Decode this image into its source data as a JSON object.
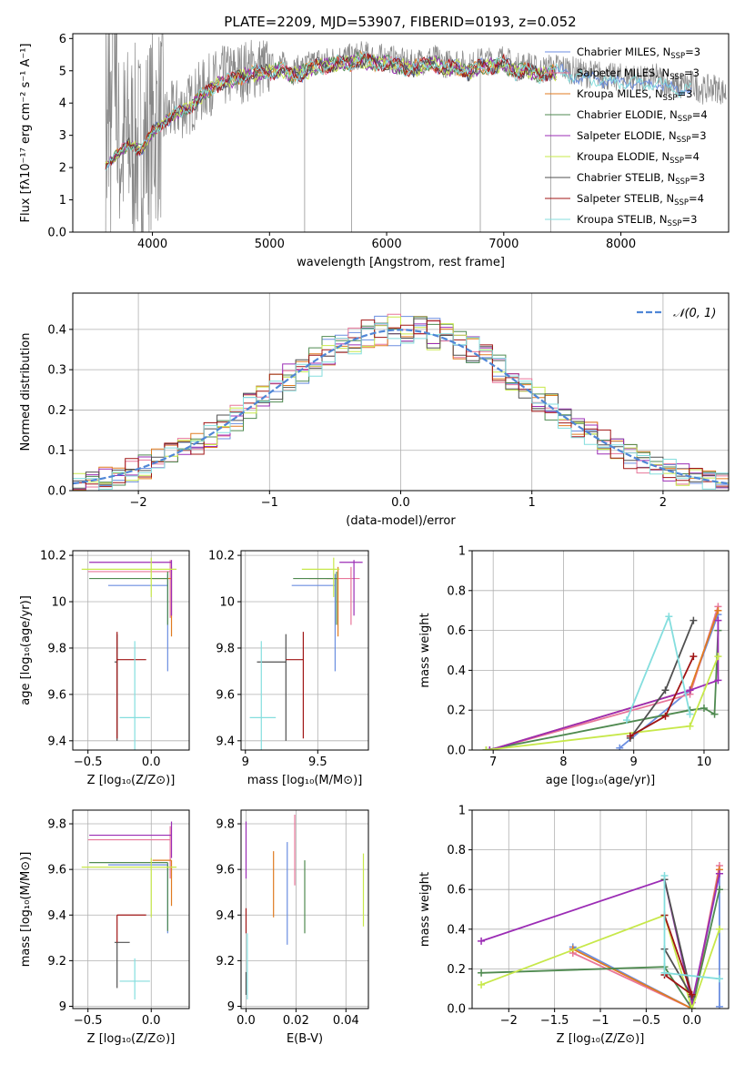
{
  "title": "PLATE=2209, MJD=53907, FIBERID=0193, z=0.052",
  "colors": {
    "Chabrier MILES": "#6b8ee0",
    "Salpeter MILES": "#e8769a",
    "Kroupa MILES": "#e07b20",
    "Chabrier ELODIE": "#4f8a50",
    "Salpeter ELODIE": "#9b2cb5",
    "Kroupa ELODIE": "#c7e84a",
    "Chabrier STELIB": "#505050",
    "Salpeter STELIB": "#a01515",
    "Kroupa STELIB": "#84dede",
    "data": "#888888",
    "normal": "#4f86d6"
  },
  "chart_data": [
    {
      "id": "spectrum",
      "type": "line",
      "xlabel": "wavelength [Angstrom, rest frame]",
      "ylabel": "Flux [fλ10⁻¹⁷ erg cm⁻² s⁻¹ A⁻¹]",
      "xlim": [
        3320,
        8920
      ],
      "ylim": [
        0,
        6.15
      ],
      "xticks": [
        4000,
        5000,
        6000,
        7000,
        8000
      ],
      "yticks": [
        0,
        1,
        2,
        3,
        4,
        5,
        6
      ],
      "legend_loc": "upper right",
      "legend": [
        {
          "label": "Chabrier MILES, N",
          "sub": "SSP",
          "tail": "=3",
          "model": "Chabrier MILES"
        },
        {
          "label": "Salpeter MILES, N",
          "sub": "SSP",
          "tail": "=3",
          "model": "Salpeter MILES"
        },
        {
          "label": "Kroupa MILES, N",
          "sub": "SSP",
          "tail": "=3",
          "model": "Kroupa MILES"
        },
        {
          "label": "Chabrier ELODIE, N",
          "sub": "SSP",
          "tail": "=4",
          "model": "Chabrier ELODIE"
        },
        {
          "label": "Salpeter ELODIE, N",
          "sub": "SSP",
          "tail": "=3",
          "model": "Salpeter ELODIE"
        },
        {
          "label": "Kroupa ELODIE, N",
          "sub": "SSP",
          "tail": "=4",
          "model": "Kroupa ELODIE"
        },
        {
          "label": "Chabrier STELIB, N",
          "sub": "SSP",
          "tail": "=3",
          "model": "Chabrier STELIB"
        },
        {
          "label": "Salpeter STELIB, N",
          "sub": "SSP",
          "tail": "=4",
          "model": "Salpeter STELIB"
        },
        {
          "label": "Kroupa STELIB, N",
          "sub": "SSP",
          "tail": "=3",
          "model": "Kroupa STELIB"
        }
      ],
      "continuum": {
        "x": [
          3600,
          3700,
          3800,
          3900,
          4000,
          4100,
          4200,
          4300,
          4400,
          4500,
          4600,
          4700,
          4800,
          4900,
          5000,
          5100,
          5200,
          5300,
          5400,
          5500,
          5600,
          5700,
          5800,
          5900,
          6000,
          6100,
          6200,
          6300,
          6400,
          6500,
          6600,
          6700,
          6800,
          6900,
          7000,
          7100,
          7200,
          7300,
          7400,
          7500,
          7600,
          7700,
          7800,
          7900,
          8000,
          8100,
          8200,
          8300,
          8400,
          8500,
          8600,
          8700,
          8800,
          8900
        ],
        "y": [
          2.1,
          2.5,
          2.8,
          2.6,
          3.2,
          3.5,
          3.8,
          3.9,
          4.3,
          4.6,
          4.8,
          4.9,
          5.0,
          5.1,
          5.1,
          5.2,
          5.0,
          5.1,
          5.3,
          5.3,
          5.4,
          5.4,
          5.5,
          5.4,
          5.4,
          5.3,
          5.2,
          5.3,
          5.4,
          5.2,
          5.3,
          5.1,
          5.3,
          5.3,
          5.4,
          5.1,
          5.2,
          5.0,
          5.1,
          5.1,
          5.0,
          4.9,
          4.9,
          4.8,
          4.8,
          4.8,
          4.7,
          4.8,
          4.6,
          4.5,
          4.6,
          4.4,
          4.5,
          4.3
        ]
      }
    },
    {
      "id": "residuals",
      "type": "histogram",
      "xlabel": "(data-model)/error",
      "ylabel": "Normed distribution",
      "xlim": [
        -2.5,
        2.5
      ],
      "ylim": [
        0,
        0.49
      ],
      "xticks": [
        -2,
        -1,
        0,
        1,
        2
      ],
      "yticks": [
        0.0,
        0.1,
        0.2,
        0.3,
        0.4
      ],
      "legend_label": "𝒩(0, 1)",
      "legend_loc": "upper right",
      "grid": true
    },
    {
      "id": "age-vs-Z",
      "type": "scatter",
      "xlabel": "Z [log₁₀(Z/Z⊙)]",
      "ylabel": "age  [log₁₀(age/yr)]",
      "xlim": [
        -0.62,
        0.3
      ],
      "ylim": [
        9.36,
        10.22
      ],
      "xticks": [
        -0.5,
        0.0
      ],
      "yticks": [
        9.4,
        9.6,
        9.8,
        10.0,
        10.2
      ],
      "grid": true,
      "points": [
        {
          "model": "Chabrier MILES",
          "x": 0.13,
          "y": 10.07,
          "xerr": [
            0.47,
            0.0
          ],
          "yerr": [
            0.37,
            0.05
          ]
        },
        {
          "model": "Salpeter MILES",
          "x": 0.15,
          "y": 10.13,
          "xerr": [
            0.65,
            0.0
          ],
          "yerr": [
            0.2,
            0.05
          ]
        },
        {
          "model": "Kroupa MILES",
          "x": 0.16,
          "y": 10.1,
          "xerr": [
            0.15,
            0.0
          ],
          "yerr": [
            0.25,
            0.05
          ]
        },
        {
          "model": "Chabrier ELODIE",
          "x": 0.13,
          "y": 10.1,
          "xerr": [
            0.62,
            0.0
          ],
          "yerr": [
            0.2,
            0.03
          ]
        },
        {
          "model": "Salpeter ELODIE",
          "x": 0.16,
          "y": 10.17,
          "xerr": [
            0.65,
            0.0
          ],
          "yerr": [
            0.23,
            0.01
          ]
        },
        {
          "model": "Kroupa ELODIE",
          "x": 0.0,
          "y": 10.14,
          "xerr": [
            0.55,
            0.2
          ],
          "yerr": [
            0.12,
            0.05
          ]
        },
        {
          "model": "Chabrier STELIB",
          "x": -0.27,
          "y": 9.74,
          "xerr": [
            0.02,
            0.0
          ],
          "yerr": [
            0.34,
            0.12
          ]
        },
        {
          "model": "Salpeter STELIB",
          "x": -0.27,
          "y": 9.75,
          "xerr": [
            0.0,
            0.23
          ],
          "yerr": [
            0.34,
            0.12
          ]
        },
        {
          "model": "Kroupa STELIB",
          "x": -0.13,
          "y": 9.5,
          "xerr": [
            0.12,
            0.12
          ],
          "yerr": [
            0.17,
            0.33
          ]
        }
      ]
    },
    {
      "id": "age-vs-mass",
      "type": "scatter",
      "xlabel": "mass [log₁₀(M/M⊙)]",
      "ylabel": "",
      "xlim": [
        8.97,
        9.85
      ],
      "ylim": [
        9.36,
        10.22
      ],
      "xticks": [
        9.0,
        9.5
      ],
      "yticks": [
        9.4,
        9.6,
        9.8,
        10.0,
        10.2
      ],
      "grid": true,
      "points": [
        {
          "model": "Chabrier MILES",
          "x": 9.62,
          "y": 10.07,
          "xerr": [
            0.3,
            0.0
          ],
          "yerr": [
            0.37,
            0.05
          ]
        },
        {
          "model": "Salpeter MILES",
          "x": 9.73,
          "y": 10.1,
          "xerr": [
            0.17,
            0.06
          ],
          "yerr": [
            0.2,
            0.05
          ]
        },
        {
          "model": "Kroupa MILES",
          "x": 9.64,
          "y": 10.1,
          "xerr": [
            0.2,
            0.0
          ],
          "yerr": [
            0.25,
            0.05
          ]
        },
        {
          "model": "Chabrier ELODIE",
          "x": 9.63,
          "y": 10.1,
          "xerr": [
            0.3,
            0.0
          ],
          "yerr": [
            0.2,
            0.03
          ]
        },
        {
          "model": "Salpeter ELODIE",
          "x": 9.75,
          "y": 10.17,
          "xerr": [
            0.1,
            0.06
          ],
          "yerr": [
            0.23,
            0.01
          ]
        },
        {
          "model": "Kroupa ELODIE",
          "x": 9.61,
          "y": 10.14,
          "xerr": [
            0.22,
            0.04
          ],
          "yerr": [
            0.12,
            0.05
          ]
        },
        {
          "model": "Chabrier STELIB",
          "x": 9.28,
          "y": 9.74,
          "xerr": [
            0.2,
            0.0
          ],
          "yerr": [
            0.34,
            0.12
          ]
        },
        {
          "model": "Salpeter STELIB",
          "x": 9.4,
          "y": 9.75,
          "xerr": [
            0.12,
            0.0
          ],
          "yerr": [
            0.34,
            0.12
          ]
        },
        {
          "model": "Kroupa STELIB",
          "x": 9.11,
          "y": 9.5,
          "xerr": [
            0.08,
            0.1
          ],
          "yerr": [
            0.17,
            0.33
          ]
        }
      ]
    },
    {
      "id": "mass-weight-vs-age",
      "type": "line",
      "xlabel": "age  [log₁₀(age/yr)]",
      "ylabel": "mass weight",
      "xlim": [
        6.7,
        10.35
      ],
      "ylim": [
        0,
        1.0
      ],
      "xticks": [
        7,
        8,
        9,
        10
      ],
      "yticks": [
        0.0,
        0.2,
        0.4,
        0.6,
        0.8,
        1.0
      ],
      "grid": true,
      "series": [
        {
          "model": "Chabrier MILES",
          "x": [
            8.8,
            9.8,
            10.2
          ],
          "y": [
            0.01,
            0.3,
            0.68
          ]
        },
        {
          "model": "Salpeter MILES",
          "x": [
            6.95,
            9.8,
            10.2
          ],
          "y": [
            0.0,
            0.28,
            0.72
          ]
        },
        {
          "model": "Kroupa MILES",
          "x": [
            6.95,
            9.8,
            10.2
          ],
          "y": [
            0.0,
            0.3,
            0.7
          ]
        },
        {
          "model": "Chabrier ELODIE",
          "x": [
            6.9,
            9.8,
            10.0,
            10.15,
            10.2
          ],
          "y": [
            0.0,
            0.2,
            0.21,
            0.18,
            0.6
          ]
        },
        {
          "model": "Salpeter ELODIE",
          "x": [
            6.95,
            9.8,
            10.2,
            10.2
          ],
          "y": [
            0.0,
            0.3,
            0.35,
            0.65
          ]
        },
        {
          "model": "Kroupa ELODIE",
          "x": [
            6.9,
            9.8,
            10.2
          ],
          "y": [
            0.0,
            0.12,
            0.47
          ]
        },
        {
          "model": "Chabrier STELIB",
          "x": [
            8.95,
            9.45,
            9.85
          ],
          "y": [
            0.06,
            0.3,
            0.65
          ]
        },
        {
          "model": "Salpeter STELIB",
          "x": [
            8.95,
            9.45,
            9.85
          ],
          "y": [
            0.07,
            0.17,
            0.47
          ]
        },
        {
          "model": "Kroupa STELIB",
          "x": [
            8.9,
            9.5,
            9.8
          ],
          "y": [
            0.15,
            0.67,
            0.18
          ]
        }
      ]
    },
    {
      "id": "mass-vs-Z",
      "type": "scatter",
      "xlabel": "Z [log₁₀(Z/Z⊙)]",
      "ylabel": "mass [log₁₀(M/M⊙)]",
      "xlim": [
        -0.62,
        0.3
      ],
      "ylim": [
        8.99,
        9.86
      ],
      "xticks": [
        -0.5,
        0.0
      ],
      "yticks": [
        9.0,
        9.2,
        9.4,
        9.6,
        9.8
      ],
      "grid": true,
      "points": [
        {
          "model": "Chabrier MILES",
          "x": 0.13,
          "y": 9.62,
          "xerr": [
            0.47,
            0.0
          ],
          "yerr": [
            0.3,
            0.0
          ]
        },
        {
          "model": "Salpeter MILES",
          "x": 0.15,
          "y": 9.73,
          "xerr": [
            0.65,
            0.0
          ],
          "yerr": [
            0.17,
            0.06
          ]
        },
        {
          "model": "Kroupa MILES",
          "x": 0.16,
          "y": 9.64,
          "xerr": [
            0.15,
            0.0
          ],
          "yerr": [
            0.2,
            0.0
          ]
        },
        {
          "model": "Chabrier ELODIE",
          "x": 0.13,
          "y": 9.63,
          "xerr": [
            0.62,
            0.0
          ],
          "yerr": [
            0.3,
            0.0
          ]
        },
        {
          "model": "Salpeter ELODIE",
          "x": 0.16,
          "y": 9.75,
          "xerr": [
            0.65,
            0.0
          ],
          "yerr": [
            0.1,
            0.06
          ]
        },
        {
          "model": "Kroupa ELODIE",
          "x": 0.0,
          "y": 9.61,
          "xerr": [
            0.55,
            0.2
          ],
          "yerr": [
            0.22,
            0.04
          ]
        },
        {
          "model": "Chabrier STELIB",
          "x": -0.27,
          "y": 9.28,
          "xerr": [
            0.02,
            0.1
          ],
          "yerr": [
            0.2,
            0.0
          ]
        },
        {
          "model": "Salpeter STELIB",
          "x": -0.27,
          "y": 9.4,
          "xerr": [
            0.0,
            0.23
          ],
          "yerr": [
            0.12,
            0.0
          ]
        },
        {
          "model": "Kroupa STELIB",
          "x": -0.13,
          "y": 9.11,
          "xerr": [
            0.12,
            0.12
          ],
          "yerr": [
            0.08,
            0.1
          ]
        }
      ]
    },
    {
      "id": "mass-vs-ebv",
      "type": "scatter",
      "xlabel": "E(B-V)",
      "ylabel": "",
      "xlim": [
        -0.002,
        0.049
      ],
      "ylim": [
        8.99,
        9.86
      ],
      "xticks": [
        0.0,
        0.02,
        0.04
      ],
      "yticks": [
        9.0,
        9.2,
        9.4,
        9.6,
        9.8
      ],
      "grid": true,
      "points": [
        {
          "model": "Chabrier MILES",
          "x": 0.0165,
          "y": 9.62,
          "yerr": [
            0.35,
            0.1
          ]
        },
        {
          "model": "Salpeter MILES",
          "x": 0.0195,
          "y": 9.73,
          "yerr": [
            0.2,
            0.11
          ]
        },
        {
          "model": "Kroupa MILES",
          "x": 0.011,
          "y": 9.54,
          "yerr": [
            0.15,
            0.14
          ]
        },
        {
          "model": "Chabrier ELODIE",
          "x": 0.0235,
          "y": 9.48,
          "yerr": [
            0.16,
            0.16
          ]
        },
        {
          "model": "Salpeter ELODIE",
          "x": 0.0,
          "y": 9.69,
          "yerr": [
            0.13,
            0.12
          ]
        },
        {
          "model": "Kroupa ELODIE",
          "x": 0.047,
          "y": 9.51,
          "yerr": [
            0.16,
            0.16
          ]
        },
        {
          "model": "Chabrier STELIB",
          "x": 0.0,
          "y": 9.1,
          "yerr": [
            0.05,
            0.05
          ]
        },
        {
          "model": "Salpeter STELIB",
          "x": 0.0,
          "y": 9.38,
          "yerr": [
            0.06,
            0.05
          ]
        },
        {
          "model": "Kroupa STELIB",
          "x": 0.0005,
          "y": 9.18,
          "yerr": [
            0.15,
            0.14
          ]
        }
      ]
    },
    {
      "id": "mass-weight-vs-Z",
      "type": "line",
      "xlabel": "Z [log₁₀(Z/Z⊙)]",
      "ylabel": "mass weight",
      "xlim": [
        -2.4,
        0.4
      ],
      "ylim": [
        0,
        1.0
      ],
      "xticks": [
        -2.0,
        -1.5,
        -1.0,
        -0.5,
        0.0
      ],
      "yticks": [
        0.0,
        0.2,
        0.4,
        0.6,
        0.8,
        1.0
      ],
      "grid": true,
      "series": [
        {
          "model": "Chabrier MILES",
          "x": [
            -1.3,
            0.0,
            0.3,
            0.3
          ],
          "y": [
            0.31,
            0.0,
            0.68,
            0.01
          ]
        },
        {
          "model": "Salpeter MILES",
          "x": [
            -1.3,
            0.0,
            0.3
          ],
          "y": [
            0.28,
            0.0,
            0.72
          ]
        },
        {
          "model": "Kroupa MILES",
          "x": [
            -1.3,
            0.0,
            0.3
          ],
          "y": [
            0.3,
            0.0,
            0.7
          ]
        },
        {
          "model": "Chabrier ELODIE",
          "x": [
            -2.3,
            -0.3,
            0.0,
            0.3
          ],
          "y": [
            0.18,
            0.21,
            0.0,
            0.6
          ]
        },
        {
          "model": "Salpeter ELODIE",
          "x": [
            -2.3,
            -0.3,
            0.0,
            0.3
          ],
          "y": [
            0.34,
            0.65,
            0.03,
            0.68
          ]
        },
        {
          "model": "Kroupa ELODIE",
          "x": [
            -2.3,
            -0.3,
            0.0,
            0.3
          ],
          "y": [
            0.12,
            0.47,
            0.0,
            0.4
          ]
        },
        {
          "model": "Chabrier STELIB",
          "x": [
            -0.3,
            0.0,
            -0.3
          ],
          "y": [
            0.65,
            0.06,
            0.3
          ]
        },
        {
          "model": "Salpeter STELIB",
          "x": [
            -0.3,
            0.0,
            -0.3
          ],
          "y": [
            0.47,
            0.07,
            0.17
          ]
        },
        {
          "model": "Kroupa STELIB",
          "x": [
            -0.3,
            -0.3,
            0.3
          ],
          "y": [
            0.67,
            0.18,
            0.15
          ]
        }
      ]
    }
  ]
}
